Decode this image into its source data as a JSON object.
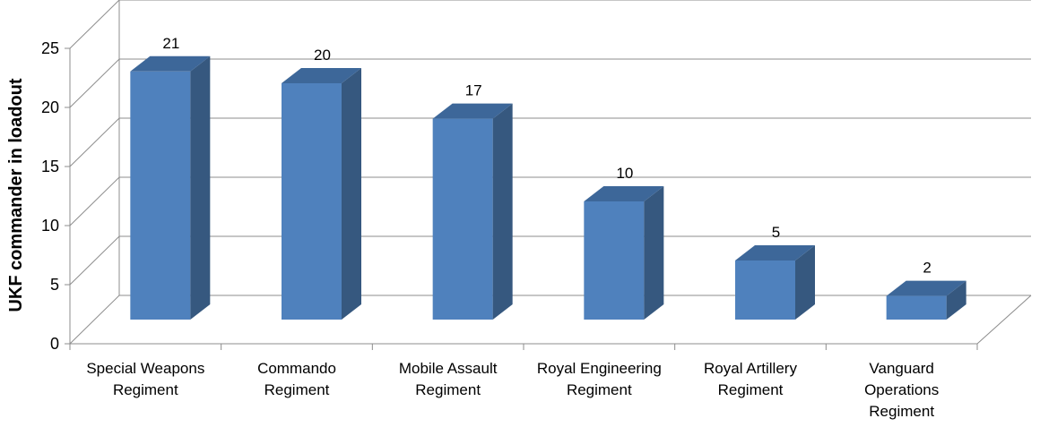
{
  "chart_data": {
    "type": "bar",
    "style": "3d-column",
    "title": "",
    "xlabel": "",
    "ylabel": "UKF commander in loadout",
    "categories": [
      "Special Weapons Regiment",
      "Commando Regiment",
      "Mobile Assault Regiment",
      "Royal Engineering Regiment",
      "Royal Artillery Regiment",
      "Vanguard Operations Regiment"
    ],
    "category_lines": [
      [
        "Special Weapons",
        "Regiment"
      ],
      [
        "Commando",
        "Regiment"
      ],
      [
        "Mobile Assault",
        "Regiment"
      ],
      [
        "Royal Engineering",
        "Regiment"
      ],
      [
        "Royal Artillery",
        "Regiment"
      ],
      [
        "Vanguard",
        "Operations",
        "Regiment"
      ]
    ],
    "values": [
      21,
      20,
      17,
      10,
      5,
      2
    ],
    "data_labels": [
      "21",
      "20",
      "17",
      "10",
      "5",
      "2"
    ],
    "ylim": [
      0,
      25
    ],
    "yticks": [
      0,
      5,
      10,
      15,
      20,
      25
    ],
    "ytick_labels": [
      "0",
      "5",
      "10",
      "15",
      "20",
      "25"
    ],
    "grid": true,
    "legend": "none",
    "colors": {
      "bar_front": "#4f81bd",
      "bar_side": "#36587f",
      "bar_top": "#3d6799",
      "gridline": "#8c8c8c"
    }
  }
}
